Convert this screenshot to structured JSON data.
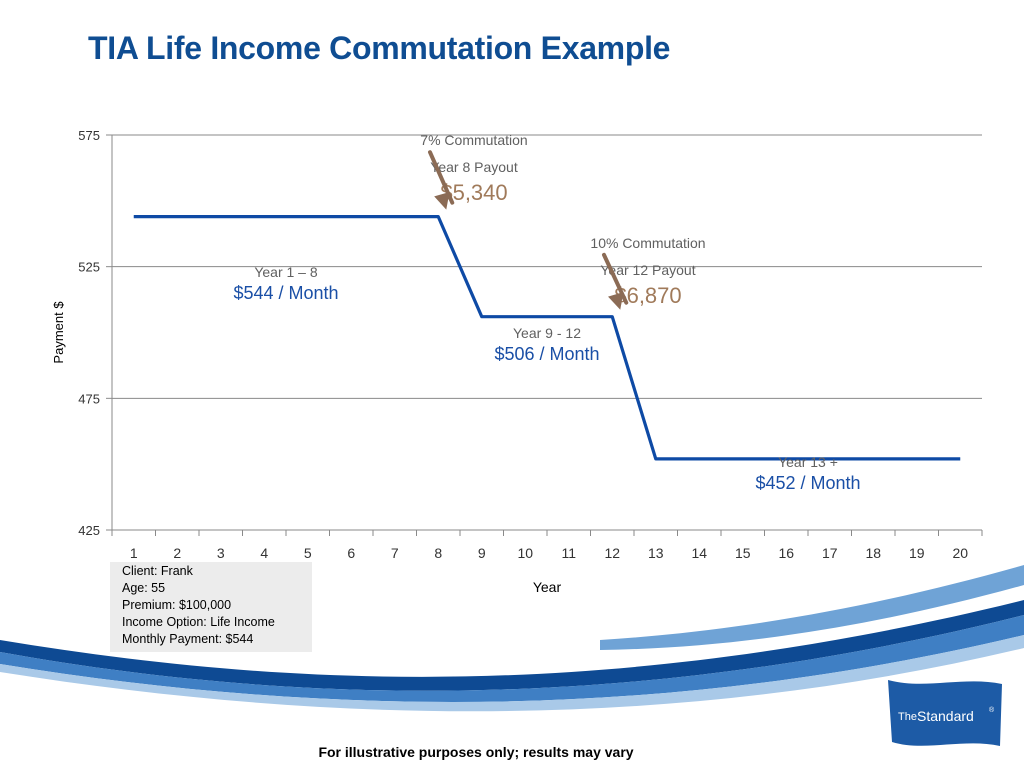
{
  "page": {
    "title": "TIA Life Income Commutation Example",
    "footer": "For illustrative purposes only; results may vary",
    "logo_text_the": "The",
    "logo_text_name": "Standard",
    "logo_mark": "®"
  },
  "client_info": [
    "Client: Frank",
    "Age: 55",
    "Premium: $100,000",
    "Income Option: Life Income",
    "Monthly Payment: $544"
  ],
  "colors": {
    "title": "#0f4d92",
    "line": "#0e4aa5",
    "arrow": "#8b6b55",
    "payout": "#a07a5a",
    "period_value": "#1a4fa6",
    "label_gray": "#606060",
    "band_dark": "#0e4a93",
    "band_light": "#6fa3d6"
  },
  "chart_data": {
    "type": "line",
    "xlabel": "Year",
    "ylabel": "Payment $",
    "ylim": [
      425,
      575
    ],
    "yticks": [
      425,
      475,
      525,
      575
    ],
    "categories": [
      "1",
      "2",
      "3",
      "4",
      "5",
      "6",
      "7",
      "8",
      "9",
      "10",
      "11",
      "12",
      "13",
      "14",
      "15",
      "16",
      "17",
      "18",
      "19",
      "20"
    ],
    "grid": true,
    "series": [
      {
        "values": [
          544,
          544,
          544,
          544,
          544,
          544,
          544,
          544,
          506,
          506,
          506,
          506,
          452,
          452,
          452,
          452,
          452,
          452,
          452,
          452
        ]
      }
    ],
    "period_labels": [
      {
        "label": "Year 1 – 8",
        "value": "$544",
        "suffix": " / Month",
        "x": 4.5,
        "y": 521
      },
      {
        "label": "Year 9 - 12",
        "value": "$506",
        "suffix": " / Month",
        "x": 10.5,
        "y": 498
      },
      {
        "label": "Year 13 +",
        "value": "$452",
        "suffix": " / Month",
        "x": 16.5,
        "y": 449
      }
    ],
    "annotations": [
      {
        "line1": "7% Commutation",
        "line2": "Year 8 Payout",
        "amount": "$5,340",
        "x": 8.5,
        "y": 570,
        "point_x": 8,
        "point_y": 544
      },
      {
        "line1": "10% Commutation",
        "line2": "Year 12 Payout",
        "amount": "$6,870",
        "x": 12.5,
        "y": 531,
        "point_x": 12,
        "point_y": 506
      }
    ]
  }
}
